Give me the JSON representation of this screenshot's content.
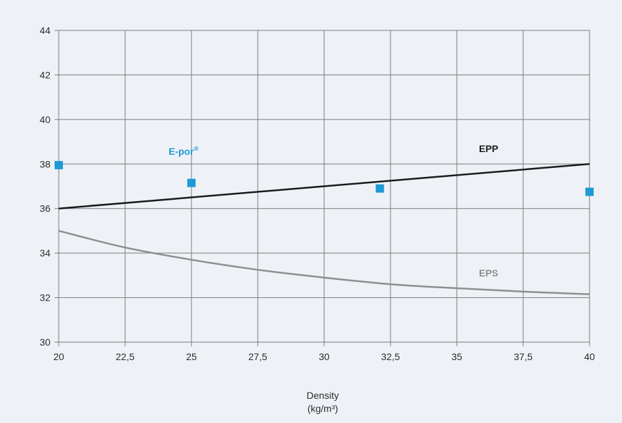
{
  "chart_data": {
    "type": "line",
    "xlabel": "Density",
    "xlabel_unit": "(kg/m³)",
    "xlim": [
      20,
      40
    ],
    "ylim": [
      30,
      44
    ],
    "x_ticks": [
      "20",
      "22,5",
      "25",
      "27,5",
      "30",
      "32,5",
      "35",
      "37,5",
      "40"
    ],
    "y_ticks": [
      "30",
      "32",
      "34",
      "36",
      "38",
      "40",
      "42",
      "44"
    ],
    "grid": true,
    "series": [
      {
        "name": "EPP",
        "kind": "line",
        "color": "#1a1a1a",
        "x": [
          20,
          40
        ],
        "y": [
          36.0,
          38.0
        ]
      },
      {
        "name": "EPS",
        "kind": "line",
        "color": "#8e8e8e",
        "x": [
          20,
          22.5,
          25,
          27.5,
          30,
          32.5,
          35,
          37.5,
          40
        ],
        "y": [
          35.0,
          34.25,
          33.7,
          33.25,
          32.9,
          32.6,
          32.42,
          32.27,
          32.15
        ]
      },
      {
        "name": "E-por",
        "name_sup": "®",
        "kind": "scatter",
        "color": "#1e9ad6",
        "x": [
          20,
          25,
          32.1,
          40
        ],
        "y": [
          37.95,
          37.15,
          36.9,
          36.75
        ]
      }
    ]
  }
}
